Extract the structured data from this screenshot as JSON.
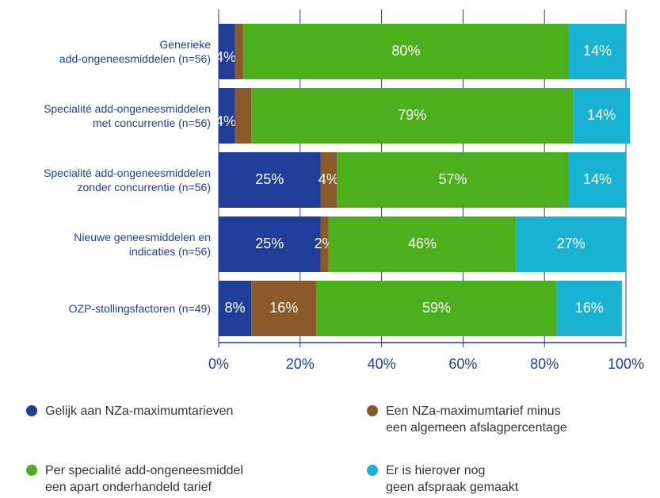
{
  "chart_data": {
    "type": "stacked-bar-horizontal",
    "categories": [
      "Generieke\nadd-ongeneesmiddelen (n=56)",
      "Specialité add-ongeneesmiddelen\nmet concurrentie (n=56)",
      "Specialité add-ongeneesmiddelen\nzonder concurrentie (n=56)",
      "Nieuwe geneesmiddelen en\nindicaties (n=56)",
      "OZP-stollingsfactoren (n=49)"
    ],
    "series": [
      {
        "name": "Gelijk aan NZa-maximumtarieven",
        "color": "#1f3d99",
        "values": [
          4,
          4,
          25,
          25,
          8
        ],
        "value_labels": [
          "4%",
          "4%",
          "25%",
          "25%",
          "8%"
        ]
      },
      {
        "name": "Een NZa-maximumtarief minus\neen algemeen afslagpercentage",
        "color": "#8a5a2b",
        "values": [
          2,
          4,
          4,
          2,
          16
        ],
        "value_labels": [
          "2%",
          "4%",
          "4%",
          "2%",
          "16%"
        ]
      },
      {
        "name": "Per specialité add-ongeneesmiddel\neen apart onderhandeld tarief",
        "color": "#4caf1c",
        "values": [
          80,
          79,
          57,
          46,
          59
        ],
        "value_labels": [
          "80%",
          "79%",
          "57%",
          "46%",
          "59%"
        ]
      },
      {
        "name": "Er is hierover nog\ngeen afspraak gemaakt",
        "color": "#19b2d3",
        "values": [
          14,
          14,
          14,
          27,
          16
        ],
        "value_labels": [
          "14%",
          "14%",
          "14%",
          "27%",
          "16%"
        ]
      }
    ],
    "xlim": [
      0,
      100
    ],
    "xticks": [
      {
        "value": 0,
        "label": "0%"
      },
      {
        "value": 20,
        "label": "20%"
      },
      {
        "value": 40,
        "label": "40%"
      },
      {
        "value": 60,
        "label": "60%"
      },
      {
        "value": 80,
        "label": "80%"
      },
      {
        "value": 100,
        "label": "100%"
      }
    ],
    "grid": true
  }
}
